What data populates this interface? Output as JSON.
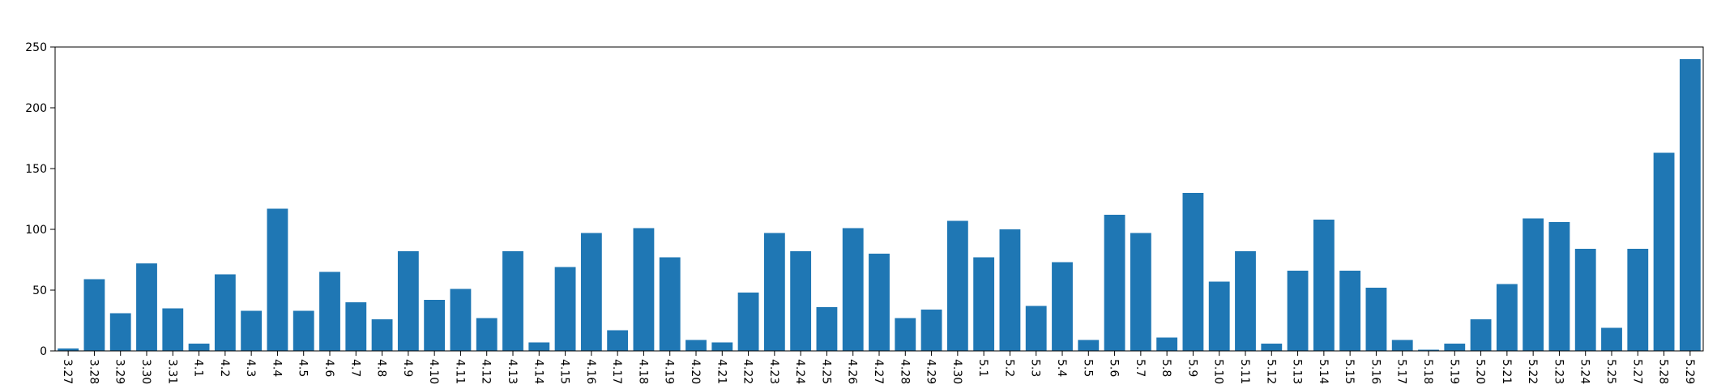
{
  "chart_data": {
    "type": "bar",
    "title": "",
    "xlabel": "",
    "ylabel": "",
    "ylim": [
      0,
      250
    ],
    "yticks": [
      0,
      50,
      100,
      150,
      200,
      250
    ],
    "grid": false,
    "bar_color": "#1f77b4",
    "categories": [
      "3.27",
      "3.28",
      "3.29",
      "3.30",
      "3.31",
      "4.1",
      "4.2",
      "4.3",
      "4.4",
      "4.5",
      "4.6",
      "4.7",
      "4.8",
      "4.9",
      "4.10",
      "4.11",
      "4.12",
      "4.13",
      "4.14",
      "4.15",
      "4.16",
      "4.17",
      "4.18",
      "4.19",
      "4.20",
      "4.21",
      "4.22",
      "4.23",
      "4.24",
      "4.25",
      "4.26",
      "4.27",
      "4.28",
      "4.29",
      "4.30",
      "5.1",
      "5.2",
      "5.3",
      "5.4",
      "5.5",
      "5.6",
      "5.7",
      "5.8",
      "5.9",
      "5.10",
      "5.11",
      "5.12",
      "5.13",
      "5.14",
      "5.15",
      "5.16",
      "5.17",
      "5.18",
      "5.19",
      "5.20",
      "5.21",
      "5.22",
      "5.23",
      "5.24",
      "5.25",
      "5.27",
      "5.28",
      "5.29"
    ],
    "values": [
      2,
      59,
      31,
      72,
      35,
      6,
      63,
      33,
      117,
      33,
      65,
      40,
      26,
      82,
      42,
      51,
      27,
      82,
      7,
      69,
      97,
      17,
      101,
      77,
      9,
      7,
      48,
      97,
      82,
      36,
      101,
      80,
      27,
      34,
      107,
      77,
      100,
      37,
      73,
      9,
      112,
      97,
      11,
      130,
      57,
      82,
      6,
      66,
      108,
      66,
      52,
      9,
      1,
      6,
      26,
      55,
      109,
      106,
      84,
      19,
      84,
      163,
      240
    ]
  }
}
